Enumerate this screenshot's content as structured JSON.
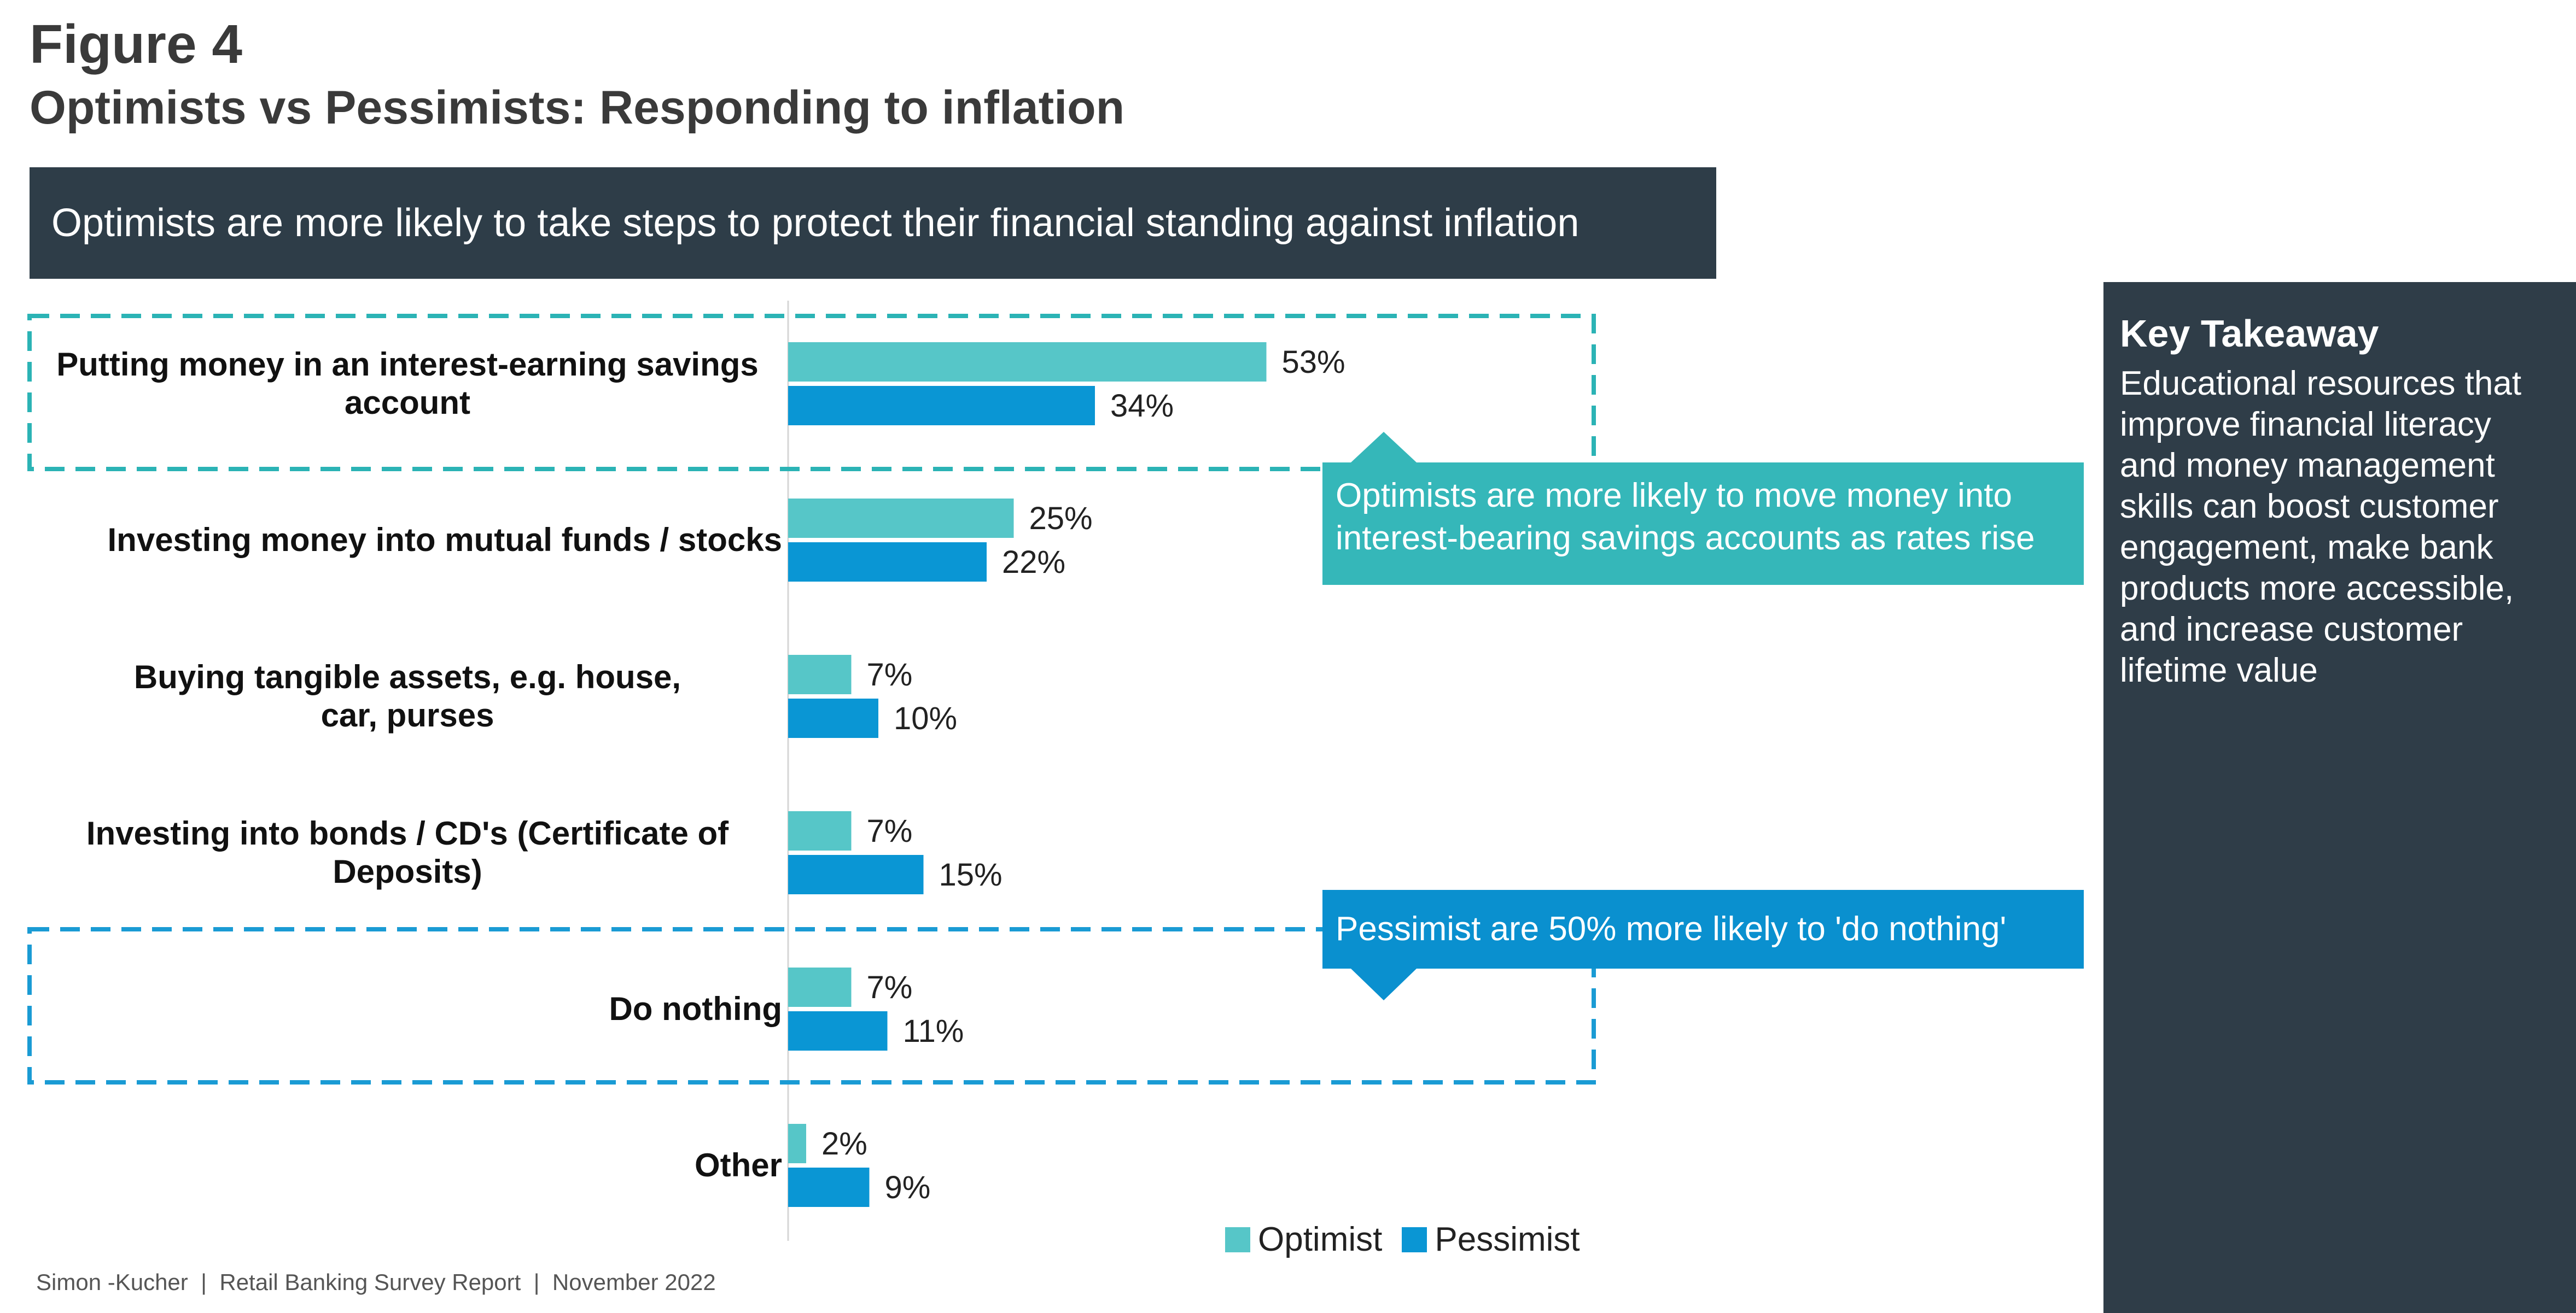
{
  "figure_label": "Figure 4",
  "title": "Optimists vs Pessimists: Responding to inflation",
  "banner": "Optimists are more likely to take steps to protect their financial standing against inflation",
  "callouts": [
    "Optimists are more likely to move money into interest-bearing savings accounts as rates rise",
    "Pessimist are 50% more likely to 'do nothing'"
  ],
  "key_takeaway": {
    "title": "Key Takeaway",
    "body": "Educational resources that improve financial literacy and money management skills can boost customer engagement, make bank products more accessible, and increase customer lifetime value"
  },
  "footer": "Simon -Kucher  |  Retail Banking Survey Report  |  November 2022",
  "colors": {
    "optimist": "#56c6c8",
    "pessimist": "#0a96d4",
    "dark": "#2f3d48",
    "callout_teal": "#35b7b9",
    "callout_blue": "#0a90cf"
  },
  "chart_data": {
    "type": "bar",
    "orientation": "horizontal",
    "categories": [
      [
        "Putting money in an interest-earning savings",
        "account"
      ],
      [
        "Investing money into mutual funds / stocks"
      ],
      [
        "Buying tangible assets, e.g. house,",
        "car, purses"
      ],
      [
        "Investing into bonds / CD's (Certificate of",
        "Deposits)"
      ],
      [
        "Do nothing"
      ],
      [
        "Other"
      ]
    ],
    "series": [
      {
        "name": "Optimist",
        "values": [
          53,
          25,
          7,
          7,
          7,
          2
        ],
        "labels": [
          "53%",
          "25%",
          "7%",
          "7%",
          "7%",
          "2%"
        ]
      },
      {
        "name": "Pessimist",
        "values": [
          34,
          22,
          10,
          15,
          11,
          9
        ],
        "labels": [
          "34%",
          "22%",
          "10%",
          "15%",
          "11%",
          "9%"
        ]
      }
    ],
    "unit": "%",
    "legend": "bottom-right",
    "grid": false
  }
}
